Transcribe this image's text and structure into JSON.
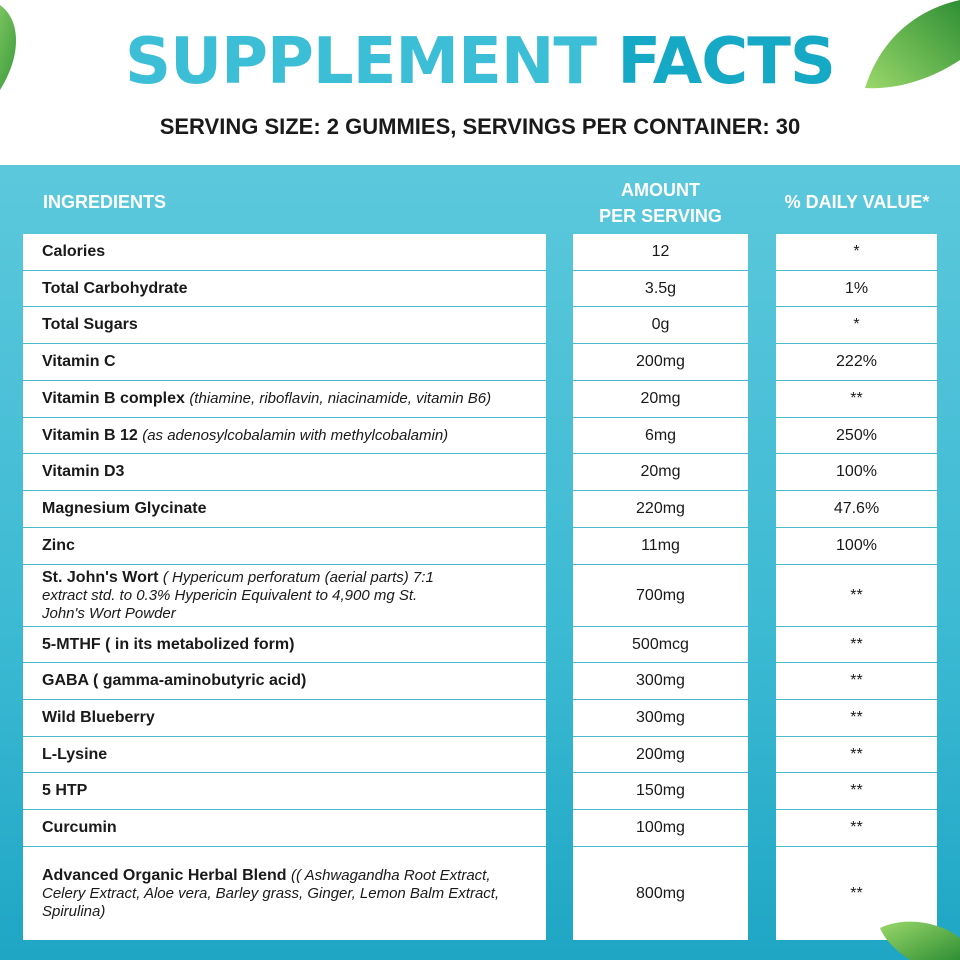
{
  "title": {
    "word1": "SUPPLEMENT",
    "word2": "FACTS"
  },
  "subtitle": "SERVING SIZE: 2 GUMMIES, SERVINGS PER CONTAINER: 30",
  "headers": {
    "ingredients": "INGREDIENTS",
    "amount_line1": "AMOUNT",
    "amount_line2": "PER SERVING",
    "daily_value": "% DAILY VALUE*"
  },
  "rows": [
    {
      "name": "Calories",
      "desc": "",
      "amount": "12",
      "dv": "*"
    },
    {
      "name": "Total Carbohydrate",
      "desc": "",
      "amount": "3.5g",
      "dv": "1%"
    },
    {
      "name": "Total Sugars",
      "desc": "",
      "amount": "0g",
      "dv": "*"
    },
    {
      "name": "Vitamin C",
      "desc": "",
      "amount": "200mg",
      "dv": "222%"
    },
    {
      "name": "Vitamin B complex",
      "desc": "(thiamine, riboflavin, niacinamide, vitamin B6)",
      "amount": "20mg",
      "dv": "**"
    },
    {
      "name": "Vitamin B 12",
      "desc": "(as adenosylcobalamin with methylcobalamin)",
      "amount": "6mg",
      "dv": "250%"
    },
    {
      "name": "Vitamin D3",
      "desc": "",
      "amount": "20mg",
      "dv": "100%"
    },
    {
      "name": "Magnesium Glycinate",
      "desc": "",
      "amount": "220mg",
      "dv": "47.6%"
    },
    {
      "name": "Zinc",
      "desc": "",
      "amount": "11mg",
      "dv": "100%"
    },
    {
      "name": "St. John's Wort",
      "desc": "( Hypericum perforatum (aerial parts) 7:1 extract std. to 0.3% Hypericin Equivalent to 4,900 mg St. John's Wort Powder",
      "amount": "700mg",
      "dv": "**"
    },
    {
      "name": "5-MTHF ( in its metabolized form)",
      "desc": "",
      "amount": "500mcg",
      "dv": "**"
    },
    {
      "name": "GABA ( gamma-aminobutyric acid)",
      "desc": "",
      "amount": "300mg",
      "dv": "**"
    },
    {
      "name": "Wild Blueberry",
      "desc": "",
      "amount": "300mg",
      "dv": "**"
    },
    {
      "name": "L-Lysine",
      "desc": "",
      "amount": "200mg",
      "dv": "**"
    },
    {
      "name": "5 HTP",
      "desc": "",
      "amount": "150mg",
      "dv": "**"
    },
    {
      "name": "Curcumin",
      "desc": "",
      "amount": "100mg",
      "dv": "**"
    },
    {
      "name": "Advanced Organic Herbal Blend",
      "desc": "(( Ashwagandha Root Extract, Celery Extract, Aloe vera, Barley grass, Ginger, Lemon Balm Extract, Spirulina)",
      "amount": "800mg",
      "dv": "**"
    }
  ],
  "colors": {
    "title_light": "#3cbfd6",
    "title_dark": "#16a9c5",
    "panel": "#3bb9d3",
    "leaf": "#5cb85c"
  },
  "decor": {
    "leaves": [
      "leaf-icon",
      "leaf-icon",
      "leaf-icon"
    ]
  }
}
